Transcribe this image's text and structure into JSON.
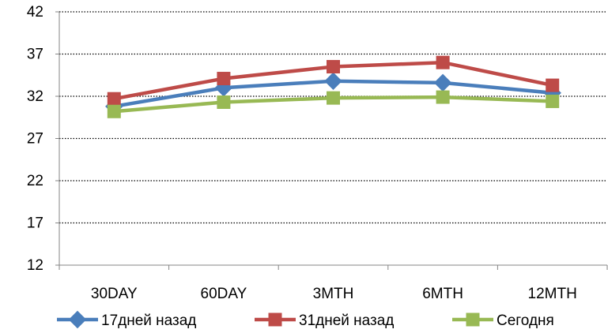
{
  "chart_data": {
    "type": "line",
    "categories": [
      "30DAY",
      "60DAY",
      "3MTH",
      "6MTH",
      "12MTH"
    ],
    "y_ticks": [
      "42",
      "37",
      "32",
      "27",
      "22",
      "17",
      "12"
    ],
    "ylim": [
      12,
      42
    ],
    "grid": "horizontal-dotted",
    "legend": "bottom",
    "series": [
      {
        "name": "17дней назад",
        "values": [
          30.8,
          33.0,
          33.8,
          33.6,
          32.4
        ],
        "color": "#4a7ebb",
        "marker": "diamond"
      },
      {
        "name": "31дней назад",
        "values": [
          31.7,
          34.1,
          35.5,
          36.0,
          33.3
        ],
        "color": "#be4b48",
        "marker": "square"
      },
      {
        "name": "Сегодня",
        "values": [
          30.2,
          31.3,
          31.8,
          31.9,
          31.4
        ],
        "color": "#98b954",
        "marker": "square"
      }
    ]
  }
}
